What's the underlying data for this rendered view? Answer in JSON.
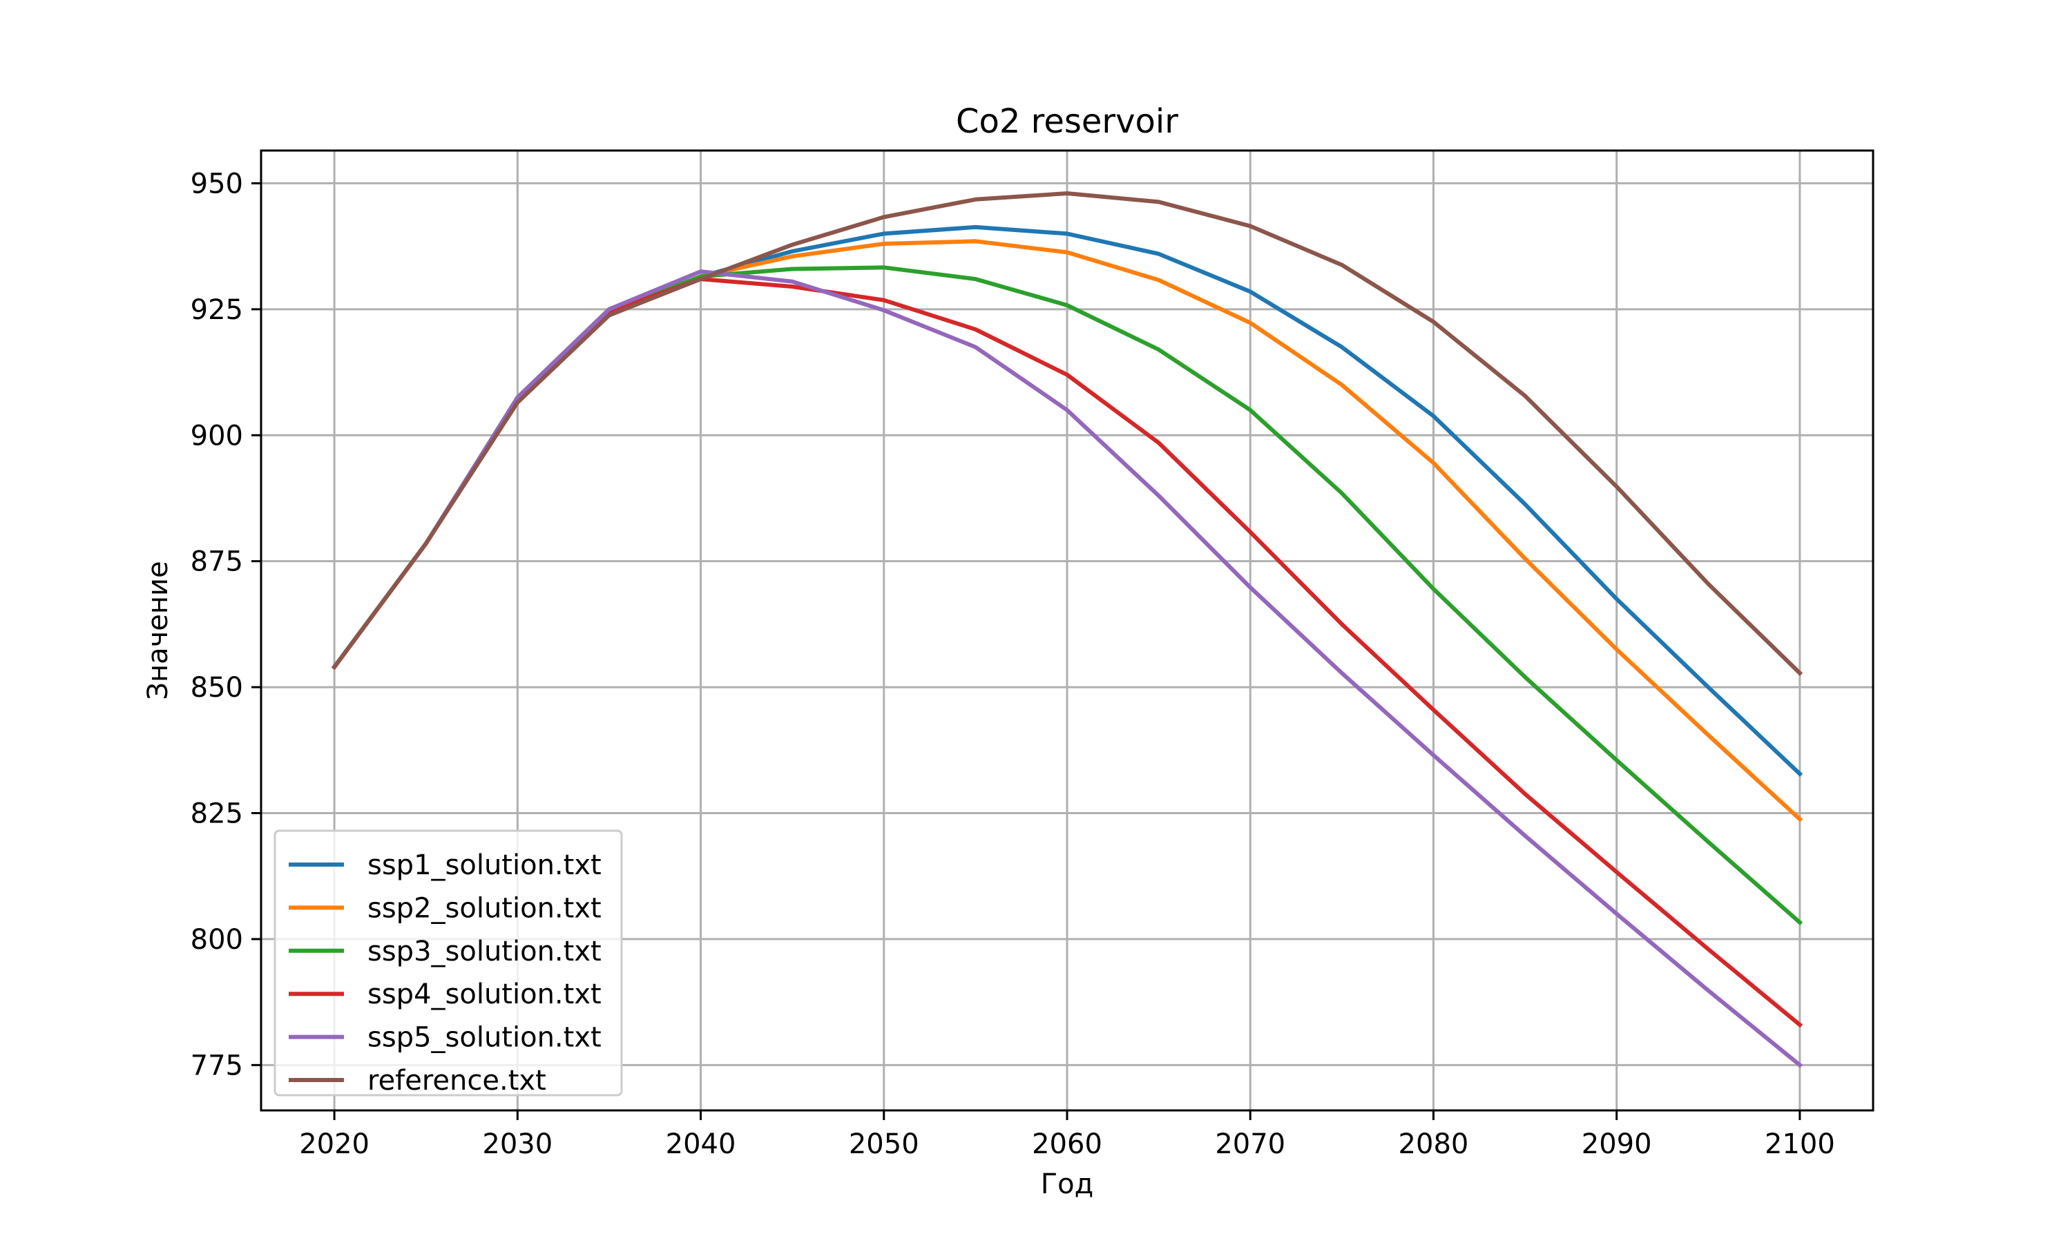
{
  "chart_data": {
    "type": "line",
    "title": "Co2 reservoir",
    "xlabel": "Год",
    "ylabel": "Значение",
    "xlim": [
      2016,
      2104
    ],
    "ylim": [
      766,
      956.5
    ],
    "xticks": [
      2020,
      2030,
      2040,
      2050,
      2060,
      2070,
      2080,
      2090,
      2100
    ],
    "xtick_labels": [
      "2020",
      "2030",
      "2040",
      "2050",
      "2060",
      "2070",
      "2080",
      "2090",
      "2100"
    ],
    "yticks": [
      775,
      800,
      825,
      850,
      875,
      900,
      925,
      950
    ],
    "ytick_labels": [
      "775",
      "800",
      "825",
      "850",
      "875",
      "900",
      "925",
      "950"
    ],
    "grid": true,
    "legend_position": "lower-left",
    "x": [
      2020,
      2025,
      2030,
      2035,
      2040,
      2045,
      2050,
      2055,
      2060,
      2065,
      2070,
      2075,
      2080,
      2085,
      2090,
      2095,
      2100
    ],
    "series": [
      {
        "name": "ssp1_solution.txt",
        "color": "#1f77b4",
        "values": [
          854,
          878.5,
          907,
          924.5,
          931.5,
          936.5,
          940,
          941.3,
          940,
          936,
          928.5,
          917.5,
          903.8,
          886.3,
          867.5,
          850,
          832.8
        ]
      },
      {
        "name": "ssp2_solution.txt",
        "color": "#ff7f0e",
        "values": [
          854,
          878.5,
          907,
          924.5,
          931.5,
          935.5,
          938,
          938.5,
          936.3,
          930.8,
          922.3,
          910,
          894.5,
          875.5,
          857.5,
          840.5,
          823.8
        ]
      },
      {
        "name": "ssp3_solution.txt",
        "color": "#2ca02c",
        "values": [
          854,
          878.5,
          907,
          924.5,
          931.5,
          933,
          933.3,
          931,
          925.8,
          917,
          905,
          888.5,
          869.5,
          852,
          835.5,
          819.3,
          803.3
        ]
      },
      {
        "name": "ssp4_solution.txt",
        "color": "#d62728",
        "values": [
          854,
          878.5,
          907,
          924.5,
          931,
          929.5,
          926.8,
          921,
          912,
          898.5,
          880.8,
          862.5,
          845.5,
          828.8,
          813.3,
          798,
          783
        ]
      },
      {
        "name": "ssp5_solution.txt",
        "color": "#9467bd",
        "values": [
          854,
          878.5,
          907.5,
          925,
          932.5,
          930.5,
          924.8,
          917.5,
          905,
          888,
          869.8,
          852.8,
          836.5,
          820.5,
          805,
          789.8,
          775
        ]
      },
      {
        "name": "reference.txt",
        "color": "#8c564b",
        "values": [
          854,
          878.5,
          906.5,
          923.8,
          931,
          937.8,
          943.3,
          946.8,
          948,
          946.3,
          941.5,
          933.8,
          922.5,
          907.8,
          889.8,
          870.5,
          852.8
        ]
      }
    ]
  }
}
